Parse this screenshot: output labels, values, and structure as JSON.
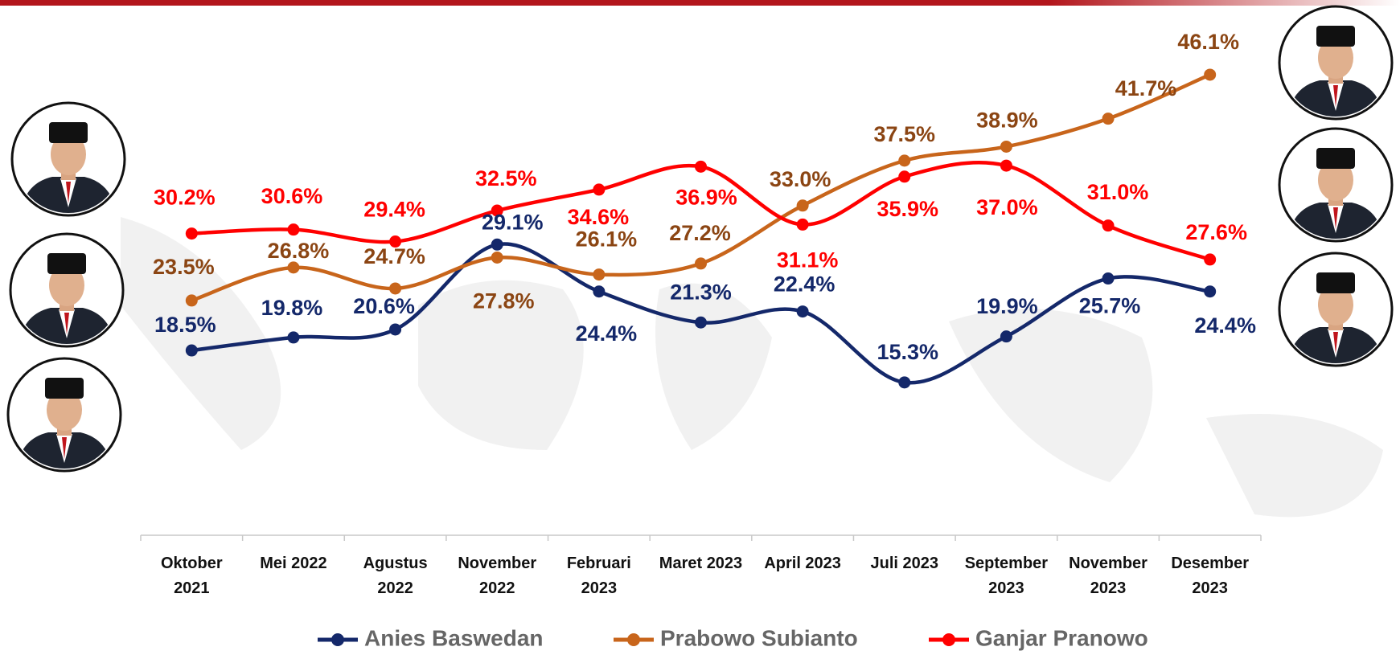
{
  "chart_data": {
    "type": "line",
    "categories": [
      "Oktober 2021",
      "Mei 2022",
      "Agustus 2022",
      "November 2022",
      "Februari 2023",
      "Maret 2023",
      "April 2023",
      "Juli 2023",
      "September 2023",
      "November 2023",
      "Desember 2023"
    ],
    "series": [
      {
        "name": "Anies Baswedan",
        "color": "#14286a",
        "label_color": "#14286a",
        "values": [
          18.5,
          19.8,
          20.6,
          29.1,
          24.4,
          21.3,
          22.4,
          15.3,
          19.9,
          25.7,
          24.4
        ],
        "value_labels": [
          "18.5%",
          "19.8%",
          "20.6%",
          "29.1%",
          "24.4%",
          "21.3%",
          "22.4%",
          "15.3%",
          "19.9%",
          "25.7%",
          "24.4%"
        ]
      },
      {
        "name": "Prabowo Subianto",
        "color": "#c8651b",
        "label_color": "#8b4513",
        "values": [
          23.5,
          26.8,
          24.7,
          27.8,
          26.1,
          27.2,
          33.0,
          37.5,
          38.9,
          41.7,
          46.1
        ],
        "value_labels": [
          "23.5%",
          "26.8%",
          "24.7%",
          "27.8%",
          "26.1%",
          "27.2%",
          "33.0%",
          "37.5%",
          "38.9%",
          "41.7%",
          "46.1%"
        ]
      },
      {
        "name": "Ganjar Pranowo",
        "color": "#ff0000",
        "label_color": "#ff0000",
        "values": [
          30.2,
          30.6,
          29.4,
          32.5,
          34.6,
          36.9,
          31.1,
          35.9,
          37.0,
          31.0,
          27.6
        ],
        "value_labels": [
          "30.2%",
          "30.6%",
          "29.4%",
          "32.5%",
          "34.6%",
          "36.9%",
          "31.1%",
          "35.9%",
          "37.0%",
          "31.0%",
          "27.6%"
        ]
      }
    ]
  }
}
